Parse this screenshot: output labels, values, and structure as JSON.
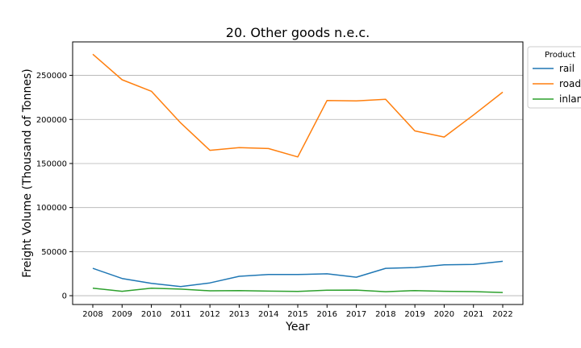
{
  "chart_data": {
    "type": "line",
    "title": "20. Other goods n.e.c.",
    "xlabel": "Year",
    "ylabel": "Freight Volume (Thousand of Tonnes)",
    "x": [
      2008,
      2009,
      2010,
      2011,
      2012,
      2013,
      2014,
      2015,
      2016,
      2017,
      2018,
      2019,
      2020,
      2021,
      2022
    ],
    "xticks": [
      "2008",
      "2009",
      "2010",
      "2011",
      "2012",
      "2013",
      "2014",
      "2015",
      "2016",
      "2017",
      "2018",
      "2019",
      "2020",
      "2021",
      "2022"
    ],
    "yticks": [
      0,
      50000,
      100000,
      150000,
      200000,
      250000
    ],
    "ytick_labels": [
      "0",
      "50000",
      "100000",
      "150000",
      "200000",
      "250000"
    ],
    "ylim": [
      -10000,
      288000
    ],
    "grid": "horizontal",
    "legend": {
      "title": "Product",
      "placement": "upper right, partially clipped"
    },
    "series": [
      {
        "name": "rail",
        "legend_label": "rail",
        "color": "#1f77b4",
        "values": [
          31000,
          19500,
          14000,
          10300,
          14500,
          22000,
          24000,
          24000,
          24800,
          21000,
          31000,
          32000,
          35000,
          35500,
          39000
        ]
      },
      {
        "name": "road",
        "legend_label": "road",
        "color": "#ff7f0e",
        "values": [
          274000,
          245000,
          232000,
          196000,
          165000,
          168000,
          167000,
          157500,
          221500,
          221000,
          222800,
          187000,
          180000,
          205000,
          231000
        ]
      },
      {
        "name": "inland waterway",
        "legend_label": "inlan",
        "color": "#2ca02c",
        "values": [
          8500,
          5000,
          8500,
          7500,
          5500,
          5800,
          5200,
          4800,
          6200,
          6400,
          4500,
          5800,
          5000,
          4600,
          3600
        ]
      }
    ]
  }
}
